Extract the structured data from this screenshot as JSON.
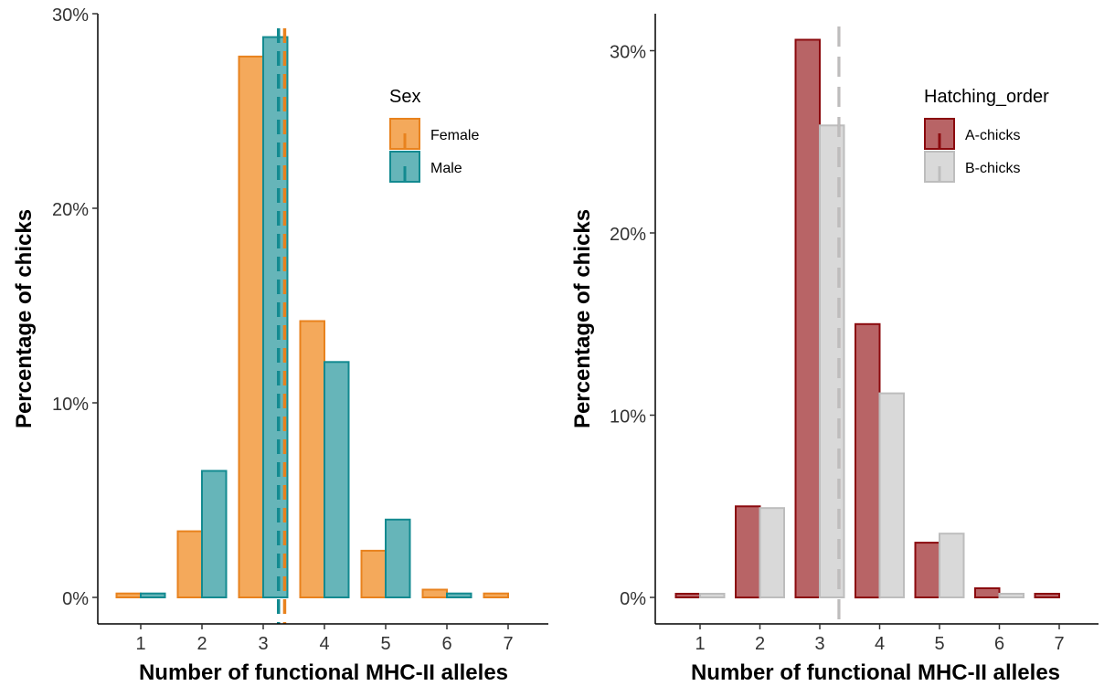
{
  "chart_data": [
    {
      "type": "bar",
      "xlabel": "Number of functional MHC-II alleles",
      "ylabel": "Percentage of chicks",
      "categories": [
        "1",
        "2",
        "3",
        "4",
        "5",
        "6",
        "7"
      ],
      "ylim": [
        0,
        30
      ],
      "yticks": [
        "0%",
        "10%",
        "20%",
        "30%"
      ],
      "grid": false,
      "legend": {
        "title": "Sex",
        "position": "top-right"
      },
      "series": [
        {
          "name": "Female",
          "fill": "#F4A95B",
          "stroke": "#E8821E",
          "values": [
            0.2,
            3.4,
            27.8,
            14.2,
            2.4,
            0.4,
            0.2
          ],
          "mean": 3.35
        },
        {
          "name": "Male",
          "fill": "#66B5B9",
          "stroke": "#138A90",
          "values": [
            0.2,
            6.5,
            28.8,
            12.1,
            4.0,
            0.2,
            0.0
          ],
          "mean": 3.25
        }
      ]
    },
    {
      "type": "bar",
      "xlabel": "Number of functional MHC-II alleles",
      "ylabel": "Percentage of chicks",
      "categories": [
        "1",
        "2",
        "3",
        "4",
        "5",
        "6",
        "7"
      ],
      "ylim": [
        0,
        30
      ],
      "yticks": [
        "0%",
        "10%",
        "20%",
        "30%"
      ],
      "grid": false,
      "legend": {
        "title": "Hatching_order",
        "position": "top-right"
      },
      "series": [
        {
          "name": "A-chicks",
          "fill": "#B86466",
          "stroke": "#8B0A0E",
          "values": [
            0.2,
            5.0,
            30.6,
            15.0,
            3.0,
            0.5,
            0.2
          ],
          "mean": 3.32
        },
        {
          "name": "B-chicks",
          "fill": "#D9D9D9",
          "stroke": "#BDBDBD",
          "values": [
            0.2,
            4.9,
            25.9,
            11.2,
            3.5,
            0.2,
            0.0
          ],
          "mean": 3.32
        }
      ]
    }
  ]
}
